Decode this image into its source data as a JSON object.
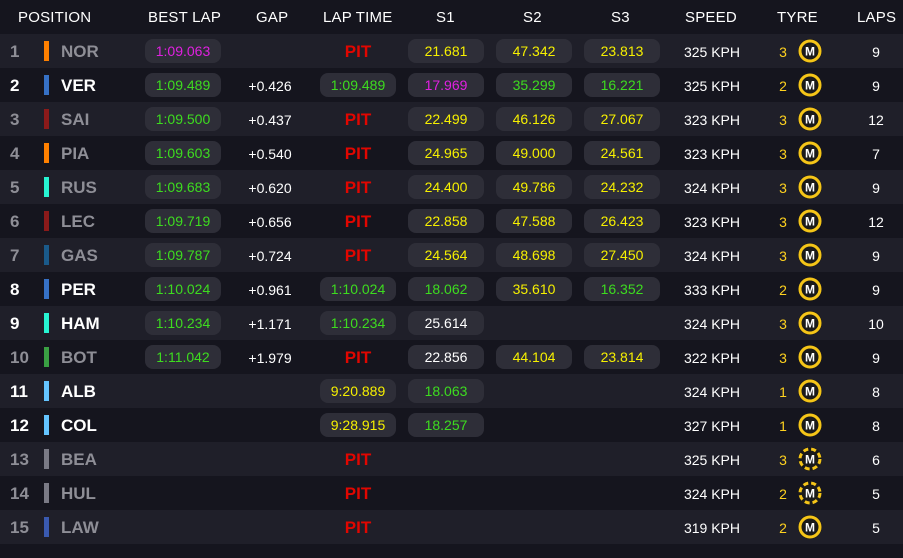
{
  "headers": [
    "POSITION",
    "BEST LAP",
    "GAP",
    "LAP TIME",
    "S1",
    "S2",
    "S3",
    "SPEED",
    "TYRE",
    "LAPS"
  ],
  "colors": {
    "green": "#3ddc1f",
    "purple": "#e020e0",
    "yellow": "#f6f000",
    "white": "#ffffff",
    "pit": "#e10600",
    "tyre_medium": "#f5c518"
  },
  "rows": [
    {
      "pos": "1",
      "abbr": "NOR",
      "team_color": "#ff8000",
      "dim": true,
      "best_lap": "1:09.063",
      "best_lap_color": "purple",
      "gap": "",
      "lap_time": "PIT",
      "lap_time_pit": true,
      "s1": "21.681",
      "s1_color": "yellow",
      "s2": "47.342",
      "s2_color": "yellow",
      "s3": "23.813",
      "s3_color": "yellow",
      "speed": "325 KPH",
      "tyre_age": "3",
      "tyre_icon": "tyre-medium-icon",
      "laps": "9"
    },
    {
      "pos": "2",
      "abbr": "VER",
      "team_color": "#3671c6",
      "dim": false,
      "best_lap": "1:09.489",
      "best_lap_color": "green",
      "gap": "+0.426",
      "lap_time": "1:09.489",
      "lap_time_pit": false,
      "lap_time_color": "green",
      "s1": "17.969",
      "s1_color": "purple",
      "s2": "35.299",
      "s2_color": "green",
      "s3": "16.221",
      "s3_color": "green",
      "speed": "325 KPH",
      "tyre_age": "2",
      "tyre_icon": "tyre-medium-icon",
      "laps": "9"
    },
    {
      "pos": "3",
      "abbr": "SAI",
      "team_color": "#8b1a1a",
      "dim": true,
      "best_lap": "1:09.500",
      "best_lap_color": "green",
      "gap": "+0.437",
      "lap_time": "PIT",
      "lap_time_pit": true,
      "s1": "22.499",
      "s1_color": "yellow",
      "s2": "46.126",
      "s2_color": "yellow",
      "s3": "27.067",
      "s3_color": "yellow",
      "speed": "323 KPH",
      "tyre_age": "3",
      "tyre_icon": "tyre-medium-icon",
      "laps": "12"
    },
    {
      "pos": "4",
      "abbr": "PIA",
      "team_color": "#ff8000",
      "dim": true,
      "best_lap": "1:09.603",
      "best_lap_color": "green",
      "gap": "+0.540",
      "lap_time": "PIT",
      "lap_time_pit": true,
      "s1": "24.965",
      "s1_color": "yellow",
      "s2": "49.000",
      "s2_color": "yellow",
      "s3": "24.561",
      "s3_color": "yellow",
      "speed": "323 KPH",
      "tyre_age": "3",
      "tyre_icon": "tyre-medium-icon",
      "laps": "7"
    },
    {
      "pos": "5",
      "abbr": "RUS",
      "team_color": "#27f4d2",
      "dim": true,
      "best_lap": "1:09.683",
      "best_lap_color": "green",
      "gap": "+0.620",
      "lap_time": "PIT",
      "lap_time_pit": true,
      "s1": "24.400",
      "s1_color": "yellow",
      "s2": "49.786",
      "s2_color": "yellow",
      "s3": "24.232",
      "s3_color": "yellow",
      "speed": "324 KPH",
      "tyre_age": "3",
      "tyre_icon": "tyre-medium-icon",
      "laps": "9"
    },
    {
      "pos": "6",
      "abbr": "LEC",
      "team_color": "#8b1a1a",
      "dim": true,
      "best_lap": "1:09.719",
      "best_lap_color": "green",
      "gap": "+0.656",
      "lap_time": "PIT",
      "lap_time_pit": true,
      "s1": "22.858",
      "s1_color": "yellow",
      "s2": "47.588",
      "s2_color": "yellow",
      "s3": "26.423",
      "s3_color": "yellow",
      "speed": "323 KPH",
      "tyre_age": "3",
      "tyre_icon": "tyre-medium-icon",
      "laps": "12"
    },
    {
      "pos": "7",
      "abbr": "GAS",
      "team_color": "#1a5a8a",
      "dim": true,
      "best_lap": "1:09.787",
      "best_lap_color": "green",
      "gap": "+0.724",
      "lap_time": "PIT",
      "lap_time_pit": true,
      "s1": "24.564",
      "s1_color": "yellow",
      "s2": "48.698",
      "s2_color": "yellow",
      "s3": "27.450",
      "s3_color": "yellow",
      "speed": "324 KPH",
      "tyre_age": "3",
      "tyre_icon": "tyre-medium-icon",
      "laps": "9"
    },
    {
      "pos": "8",
      "abbr": "PER",
      "team_color": "#3671c6",
      "dim": false,
      "best_lap": "1:10.024",
      "best_lap_color": "green",
      "gap": "+0.961",
      "lap_time": "1:10.024",
      "lap_time_pit": false,
      "lap_time_color": "green",
      "s1": "18.062",
      "s1_color": "green",
      "s2": "35.610",
      "s2_color": "yellow",
      "s3": "16.352",
      "s3_color": "green",
      "speed": "333 KPH",
      "tyre_age": "2",
      "tyre_icon": "tyre-medium-icon",
      "laps": "9"
    },
    {
      "pos": "9",
      "abbr": "HAM",
      "team_color": "#27f4d2",
      "dim": false,
      "best_lap": "1:10.234",
      "best_lap_color": "green",
      "gap": "+1.171",
      "lap_time": "1:10.234",
      "lap_time_pit": false,
      "lap_time_color": "green",
      "s1": "25.614",
      "s1_color": "white",
      "s2": "",
      "s2_color": "white",
      "s3": "",
      "s3_color": "white",
      "speed": "324 KPH",
      "tyre_age": "3",
      "tyre_icon": "tyre-medium-icon",
      "laps": "10"
    },
    {
      "pos": "10",
      "abbr": "BOT",
      "team_color": "#3aa043",
      "dim": true,
      "best_lap": "1:11.042",
      "best_lap_color": "green",
      "gap": "+1.979",
      "lap_time": "PIT",
      "lap_time_pit": true,
      "s1": "22.856",
      "s1_color": "white",
      "s2": "44.104",
      "s2_color": "yellow",
      "s3": "23.814",
      "s3_color": "yellow",
      "speed": "322 KPH",
      "tyre_age": "3",
      "tyre_icon": "tyre-medium-icon",
      "laps": "9"
    },
    {
      "pos": "11",
      "abbr": "ALB",
      "team_color": "#64c4ff",
      "dim": false,
      "best_lap": "",
      "best_lap_color": "green",
      "gap": "",
      "lap_time": "9:20.889",
      "lap_time_pit": false,
      "lap_time_color": "yellow",
      "s1": "18.063",
      "s1_color": "green",
      "s2": "",
      "s2_color": "white",
      "s3": "",
      "s3_color": "white",
      "speed": "324 KPH",
      "tyre_age": "1",
      "tyre_icon": "tyre-medium-icon",
      "laps": "8"
    },
    {
      "pos": "12",
      "abbr": "COL",
      "team_color": "#64c4ff",
      "dim": false,
      "best_lap": "",
      "best_lap_color": "green",
      "gap": "",
      "lap_time": "9:28.915",
      "lap_time_pit": false,
      "lap_time_color": "yellow",
      "s1": "18.257",
      "s1_color": "green",
      "s2": "",
      "s2_color": "white",
      "s3": "",
      "s3_color": "white",
      "speed": "327 KPH",
      "tyre_age": "1",
      "tyre_icon": "tyre-medium-icon",
      "laps": "8"
    },
    {
      "pos": "13",
      "abbr": "BEA",
      "team_color": "#7a7a85",
      "dim": true,
      "best_lap": "",
      "best_lap_color": "green",
      "gap": "",
      "lap_time": "PIT",
      "lap_time_pit": true,
      "s1": "",
      "s1_color": "white",
      "s2": "",
      "s2_color": "white",
      "s3": "",
      "s3_color": "white",
      "speed": "325 KPH",
      "tyre_age": "3",
      "tyre_icon": "tyre-medium-used-icon",
      "laps": "6"
    },
    {
      "pos": "14",
      "abbr": "HUL",
      "team_color": "#7a7a85",
      "dim": true,
      "best_lap": "",
      "best_lap_color": "green",
      "gap": "",
      "lap_time": "PIT",
      "lap_time_pit": true,
      "s1": "",
      "s1_color": "white",
      "s2": "",
      "s2_color": "white",
      "s3": "",
      "s3_color": "white",
      "speed": "324 KPH",
      "tyre_age": "2",
      "tyre_icon": "tyre-medium-used-icon",
      "laps": "5"
    },
    {
      "pos": "15",
      "abbr": "LAW",
      "team_color": "#3a5ab0",
      "dim": true,
      "best_lap": "",
      "best_lap_color": "green",
      "gap": "",
      "lap_time": "PIT",
      "lap_time_pit": true,
      "s1": "",
      "s1_color": "white",
      "s2": "",
      "s2_color": "white",
      "s3": "",
      "s3_color": "white",
      "speed": "319 KPH",
      "tyre_age": "2",
      "tyre_icon": "tyre-medium-icon",
      "laps": "5"
    }
  ]
}
